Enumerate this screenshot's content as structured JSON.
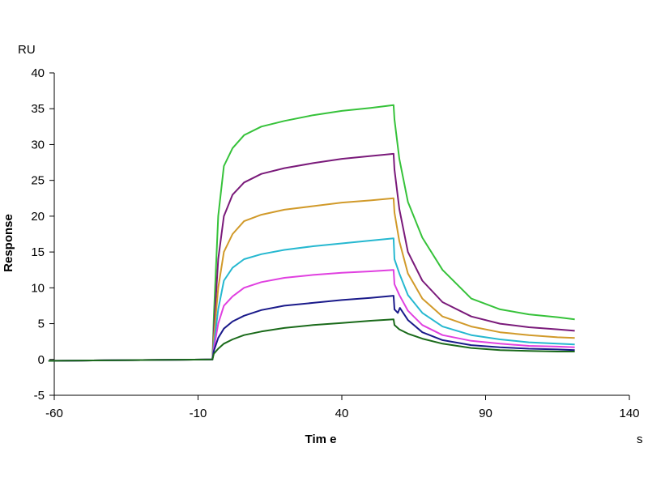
{
  "chart_data": {
    "type": "line",
    "title": "",
    "xlabel": "Tim e",
    "ylabel": "Response",
    "x_unit": "s",
    "y_unit": "RU",
    "xlim": [
      -60,
      140
    ],
    "ylim": [
      -5,
      40
    ],
    "x_ticks": [
      -60,
      -10,
      40,
      90,
      140
    ],
    "y_ticks": [
      -5,
      0,
      5,
      10,
      15,
      20,
      25,
      30,
      35,
      40
    ],
    "grid": false,
    "legend": "none",
    "series": [
      {
        "color": "#36c23a",
        "x": [
          -62,
          -5,
          -4.5,
          -3,
          -1,
          2,
          6,
          12,
          20,
          30,
          40,
          50,
          58,
          58.3,
          60,
          63,
          68,
          75,
          85,
          95,
          105,
          115,
          121
        ],
        "y": [
          -0.2,
          0,
          6,
          20,
          27,
          29.5,
          31.3,
          32.5,
          33.3,
          34.1,
          34.7,
          35.1,
          35.5,
          33.5,
          28,
          22,
          17,
          12.5,
          8.5,
          7,
          6.3,
          5.9,
          5.6
        ]
      },
      {
        "color": "#7a1a7a",
        "x": [
          -62,
          -5,
          -4.5,
          -3,
          -1,
          2,
          6,
          12,
          20,
          30,
          40,
          50,
          58,
          58.3,
          60,
          63,
          68,
          75,
          85,
          95,
          105,
          115,
          121
        ],
        "y": [
          -0.2,
          0,
          4,
          14,
          20,
          23,
          24.7,
          25.9,
          26.7,
          27.4,
          28,
          28.4,
          28.7,
          26.5,
          21,
          15,
          11,
          8,
          6,
          5,
          4.5,
          4.2,
          4
        ]
      },
      {
        "color": "#d19a2a",
        "x": [
          -62,
          -5,
          -4.5,
          -3,
          -1,
          2,
          6,
          12,
          20,
          30,
          40,
          50,
          58,
          58.3,
          60,
          63,
          68,
          75,
          85,
          95,
          105,
          115,
          121
        ],
        "y": [
          -0.2,
          0,
          3,
          10,
          15,
          17.5,
          19.3,
          20.2,
          20.9,
          21.4,
          21.9,
          22.2,
          22.5,
          20.5,
          16.5,
          12,
          8.5,
          6,
          4.6,
          3.8,
          3.4,
          3.1,
          3
        ]
      },
      {
        "color": "#26b8d0",
        "x": [
          -62,
          -5,
          -4.5,
          -3,
          -1,
          2,
          6,
          12,
          20,
          30,
          40,
          50,
          58,
          58.3,
          60,
          63,
          68,
          75,
          85,
          95,
          105,
          115,
          121
        ],
        "y": [
          -0.2,
          0,
          2,
          7,
          11,
          12.8,
          14,
          14.7,
          15.3,
          15.8,
          16.2,
          16.6,
          16.9,
          14,
          12,
          9,
          6.5,
          4.6,
          3.4,
          2.8,
          2.4,
          2.2,
          2.1
        ]
      },
      {
        "color": "#e040e0",
        "x": [
          -62,
          -5,
          -4.5,
          -3,
          -1,
          2,
          6,
          12,
          20,
          30,
          40,
          50,
          58,
          58.3,
          60,
          63,
          68,
          75,
          85,
          95,
          105,
          115,
          121
        ],
        "y": [
          -0.2,
          0,
          1.5,
          5,
          7.5,
          8.8,
          10,
          10.8,
          11.4,
          11.8,
          12.1,
          12.3,
          12.5,
          10.5,
          9,
          6.8,
          4.8,
          3.4,
          2.6,
          2.2,
          1.9,
          1.8,
          1.7
        ]
      },
      {
        "color": "#1a1a8a",
        "x": [
          -62,
          -5,
          -4.5,
          -3,
          -1,
          2,
          6,
          12,
          20,
          30,
          40,
          50,
          58,
          58.3,
          59.5,
          60.2,
          63,
          68,
          75,
          85,
          95,
          105,
          115,
          121
        ],
        "y": [
          -0.2,
          0,
          1.2,
          3,
          4.3,
          5.3,
          6.1,
          6.9,
          7.5,
          7.9,
          8.3,
          8.6,
          8.9,
          7,
          6.5,
          7.2,
          5.5,
          3.8,
          2.7,
          2,
          1.7,
          1.5,
          1.4,
          1.3
        ]
      },
      {
        "color": "#1a6a1a",
        "x": [
          -62,
          -5,
          -4.5,
          -3,
          -1,
          2,
          6,
          12,
          20,
          30,
          40,
          50,
          58,
          58.3,
          60,
          63,
          68,
          75,
          85,
          95,
          105,
          115,
          121
        ],
        "y": [
          -0.2,
          0,
          0.8,
          1.5,
          2.2,
          2.8,
          3.4,
          3.9,
          4.4,
          4.8,
          5.1,
          5.4,
          5.6,
          4.8,
          4.2,
          3.6,
          2.9,
          2.2,
          1.6,
          1.3,
          1.2,
          1.1,
          1.1
        ]
      }
    ]
  }
}
